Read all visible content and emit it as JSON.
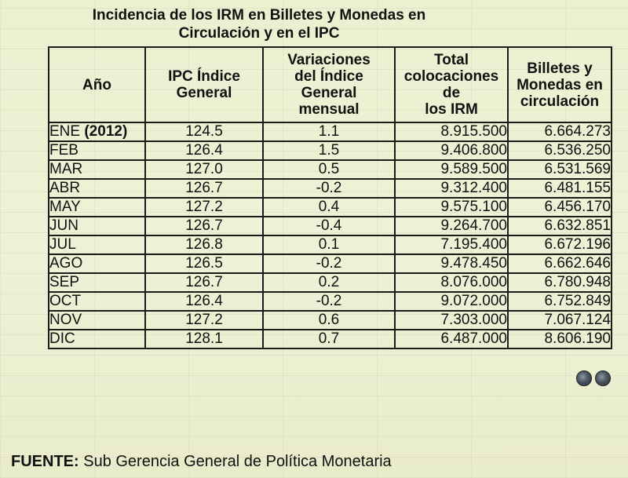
{
  "title": {
    "line1": "Incidencia de los IRM en Billetes y Monedas en",
    "line2": "Circulación y en el IPC"
  },
  "table": {
    "headers": {
      "anio": "Año",
      "ipc_l1": "IPC Índice",
      "ipc_l2": "General",
      "var_l1": "Variaciones",
      "var_l2": "del Índice",
      "var_l3": "General",
      "var_l4": "mensual",
      "total_l1": "Total",
      "total_l2": "colocaciones de",
      "total_l3": "los IRM",
      "billetes_l1": "Billetes y",
      "billetes_l2": "Monedas en",
      "billetes_l3": "circulación"
    },
    "rows": [
      {
        "mes": "ENE",
        "anio": "(2012)",
        "ipc": "124.5",
        "variacion": "1.1",
        "total": "8.915.500",
        "billetes": "6.664.273"
      },
      {
        "mes": "FEB",
        "anio": "",
        "ipc": "126.4",
        "variacion": "1.5",
        "total": "9.406.800",
        "billetes": "6.536.250"
      },
      {
        "mes": "MAR",
        "anio": "",
        "ipc": "127.0",
        "variacion": "0.5",
        "total": "9.589.500",
        "billetes": "6.531.569"
      },
      {
        "mes": "ABR",
        "anio": "",
        "ipc": "126.7",
        "variacion": "-0.2",
        "total": "9.312.400",
        "billetes": "6.481.155"
      },
      {
        "mes": "MAY",
        "anio": "",
        "ipc": "127.2",
        "variacion": "0.4",
        "total": "9.575.100",
        "billetes": "6.456.170"
      },
      {
        "mes": "JUN",
        "anio": "",
        "ipc": "126.7",
        "variacion": "-0.4",
        "total": "9.264.700",
        "billetes": "6.632.851"
      },
      {
        "mes": "JUL",
        "anio": "",
        "ipc": "126.8",
        "variacion": "0.1",
        "total": "7.195.400",
        "billetes": "6.672.196"
      },
      {
        "mes": "AGO",
        "anio": "",
        "ipc": "126.5",
        "variacion": "-0.2",
        "total": "9.478.450",
        "billetes": "6.662.646"
      },
      {
        "mes": "SEP",
        "anio": "",
        "ipc": "126.7",
        "variacion": "0.2",
        "total": "8.076.000",
        "billetes": "6.780.948"
      },
      {
        "mes": "OCT",
        "anio": "",
        "ipc": "126.4",
        "variacion": "-0.2",
        "total": "9.072.000",
        "billetes": "6.752.849"
      },
      {
        "mes": "NOV",
        "anio": "",
        "ipc": "127.2",
        "variacion": "0.6",
        "total": "7.303.000",
        "billetes": "7.067.124"
      },
      {
        "mes": "DIC",
        "anio": "",
        "ipc": "128.1",
        "variacion": "0.7",
        "total": "6.487.000",
        "billetes": "8.606.190"
      }
    ]
  },
  "footer": {
    "label": "FUENTE:",
    "text": "Sub Gerencia General de Política Monetaria"
  },
  "colors": {
    "background": "#eef0d2",
    "text": "#111111",
    "border": "#1b1b1b"
  }
}
